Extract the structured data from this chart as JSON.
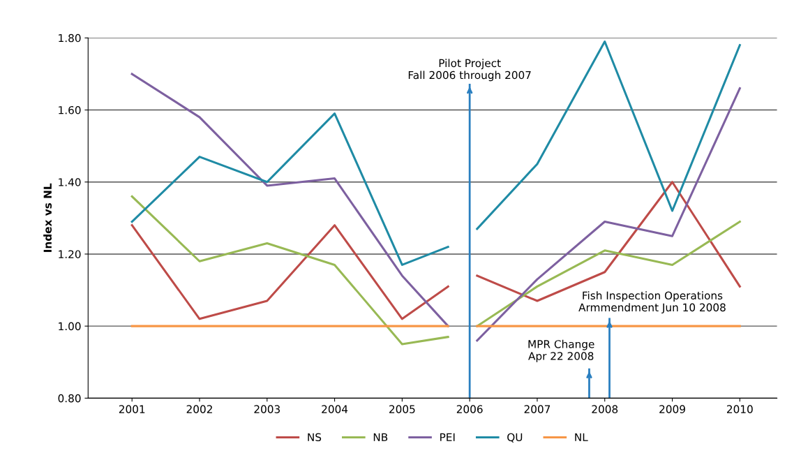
{
  "chart_data": {
    "type": "line",
    "ylabel": "Index vs NL",
    "x": [
      2001,
      2002,
      2003,
      2004,
      2005,
      2005.68,
      null,
      2006.11,
      2007,
      2008,
      2009,
      2010
    ],
    "series": [
      {
        "name": "NS",
        "color": "#be4b48",
        "values": [
          1.28,
          1.02,
          1.07,
          1.28,
          1.02,
          1.11,
          null,
          1.14,
          1.07,
          1.15,
          1.4,
          1.11
        ]
      },
      {
        "name": "NB",
        "color": "#98b954",
        "values": [
          1.36,
          1.18,
          1.23,
          1.17,
          0.95,
          0.97,
          null,
          1.0,
          1.11,
          1.21,
          1.17,
          1.29
        ]
      },
      {
        "name": "PEI",
        "color": "#7d60a0",
        "values": [
          1.7,
          1.58,
          1.39,
          1.41,
          1.14,
          1.0,
          null,
          0.96,
          1.13,
          1.29,
          1.25,
          1.66
        ]
      },
      {
        "name": "QU",
        "color": "#1f8ba5",
        "values": [
          1.29,
          1.47,
          1.4,
          1.59,
          1.17,
          1.22,
          null,
          1.27,
          1.45,
          1.79,
          1.32,
          1.78
        ]
      },
      {
        "name": "NL",
        "color": "#f79646",
        "values": [
          1.0,
          1.0,
          1.0,
          1.0,
          1.0,
          1.0,
          null,
          1.0,
          1.0,
          1.0,
          1.0,
          1.0
        ]
      }
    ],
    "xlim": [
      2000.35,
      2010.55
    ],
    "xticks": [
      2001,
      2002,
      2003,
      2004,
      2005,
      2006,
      2007,
      2008,
      2009,
      2010
    ],
    "ylim": [
      0.8,
      1.8
    ],
    "yticks": [
      {
        "value": 0.8,
        "label": "0.80"
      },
      {
        "value": 1.0,
        "label": "1.00"
      },
      {
        "value": 1.2,
        "label": "1.20"
      },
      {
        "value": 1.4,
        "label": "1.40"
      },
      {
        "value": 1.6,
        "label": "1.60"
      },
      {
        "value": 1.8,
        "label": "1.80"
      }
    ],
    "grid": "y",
    "legend": "bottom",
    "marker": "none",
    "line_style": "solid",
    "ref_lines": [
      {
        "axis": "x",
        "value": 2006,
        "label": "Pilot Project\nFall 2006 through 2007",
        "color": "#2a7fc0"
      },
      {
        "axis": "x",
        "value": 2007.77,
        "label": "MPR Change\nApr 22 2008",
        "color": "#2a7fc0"
      },
      {
        "axis": "x",
        "value": 2008.07,
        "label": "Fish Inspection Operations\nArmmendment Jun 10 2008",
        "color": "#2a7fc0"
      }
    ]
  }
}
